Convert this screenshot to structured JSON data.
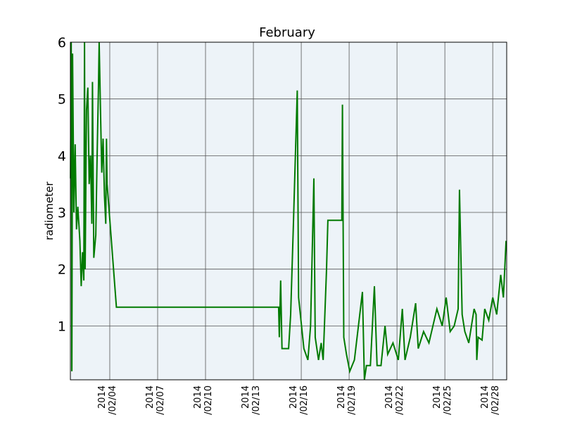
{
  "chart_data": {
    "type": "line",
    "title": "February",
    "y_label": "radiometer",
    "x": [
      "2014-02-01T13:00",
      "2014-02-01T14:00",
      "2014-02-01T15:00",
      "2014-02-01T16:00",
      "2014-02-01T18:00",
      "2014-02-01T20:00",
      "2014-02-01T22:00",
      "2014-02-02T00:00",
      "2014-02-02T03:00",
      "2014-02-02T05:00",
      "2014-02-02T07:00",
      "2014-02-02T09:00",
      "2014-02-02T10:00",
      "2014-02-02T11:00",
      "2014-02-02T13:00",
      "2014-02-02T15:00",
      "2014-02-02T17:00",
      "2014-02-02T19:00",
      "2014-02-02T21:00",
      "2014-02-02T22:00",
      "2014-02-03T00:00",
      "2014-02-03T03:00",
      "2014-02-03T05:00",
      "2014-02-03T07:00",
      "2014-02-03T08:00",
      "2014-02-03T10:00",
      "2014-02-03T12:00",
      "2014-02-03T14:00",
      "2014-02-03T16:00",
      "2014-02-03T18:00",
      "2014-02-03T19:00",
      "2014-02-03T20:00",
      "2014-02-04T10:00",
      "2014-02-14T14:00",
      "2014-02-14T15:00",
      "2014-02-14T17:00",
      "2014-02-14T19:00",
      "2014-02-15T05:00",
      "2014-02-15T08:00",
      "2014-02-15T12:00",
      "2014-02-15T18:00",
      "2014-02-15T20:00",
      "2014-02-16T04:00",
      "2014-02-16T10:00",
      "2014-02-16T14:00",
      "2014-02-16T19:00",
      "2014-02-16T21:00",
      "2014-02-17T02:00",
      "2014-02-17T06:00",
      "2014-02-17T09:00",
      "2014-02-17T14:00",
      "2014-02-17T16:00",
      "2014-02-18T13:00",
      "2014-02-18T14:00",
      "2014-02-18T16:00",
      "2014-02-18T20:00",
      "2014-02-19T01:00",
      "2014-02-19T08:00",
      "2014-02-19T20:00",
      "2014-02-19T23:00",
      "2014-02-20T02:00",
      "2014-02-20T08:00",
      "2014-02-20T14:00",
      "2014-02-20T18:00",
      "2014-02-21T00:00",
      "2014-02-21T06:00",
      "2014-02-21T10:00",
      "2014-02-21T18:00",
      "2014-02-22T02:00",
      "2014-02-22T08:00",
      "2014-02-22T12:00",
      "2014-02-22T20:00",
      "2014-02-23T04:00",
      "2014-02-23T08:00",
      "2014-02-23T16:00",
      "2014-02-24T00:00",
      "2014-02-24T12:00",
      "2014-02-24T20:00",
      "2014-02-25T02:00",
      "2014-02-25T08:00",
      "2014-02-25T14:00",
      "2014-02-25T20:00",
      "2014-02-25T22:00",
      "2014-02-26T02:00",
      "2014-02-26T06:00",
      "2014-02-26T12:00",
      "2014-02-26T20:00",
      "2014-02-26T23:00",
      "2014-02-27T00:00",
      "2014-02-27T02:00",
      "2014-02-27T08:00",
      "2014-02-27T12:00",
      "2014-02-27T18:00",
      "2014-02-28T00:00",
      "2014-02-28T06:00",
      "2014-02-28T12:00",
      "2014-02-28T16:00",
      "2014-02-28T20:00"
    ],
    "series": [
      {
        "color": "#007a00",
        "values": [
          3.6,
          6.0,
          0.2,
          5.8,
          3.0,
          4.2,
          2.7,
          3.1,
          2.5,
          1.7,
          2.3,
          1.8,
          6.0,
          2.0,
          4.8,
          5.2,
          3.5,
          4.0,
          2.8,
          5.3,
          2.2,
          2.6,
          4.0,
          5.2,
          6.0,
          4.8,
          3.7,
          4.3,
          3.3,
          2.8,
          4.3,
          3.5,
          1.33,
          1.33,
          0.8,
          1.8,
          0.6,
          0.6,
          1.2,
          2.7,
          5.15,
          1.5,
          0.6,
          0.4,
          1.0,
          3.6,
          0.8,
          0.4,
          0.7,
          0.4,
          2.0,
          2.86,
          2.86,
          4.9,
          0.8,
          0.5,
          0.2,
          0.4,
          1.6,
          0.05,
          0.3,
          0.3,
          1.7,
          0.3,
          0.3,
          1.0,
          0.5,
          0.7,
          0.4,
          1.3,
          0.4,
          0.8,
          1.4,
          0.6,
          0.9,
          0.7,
          1.3,
          1.0,
          1.5,
          0.9,
          1.0,
          1.3,
          3.4,
          1.2,
          0.9,
          0.7,
          1.3,
          1.2,
          0.4,
          0.8,
          0.75,
          1.3,
          1.1,
          1.5,
          1.2,
          1.9,
          1.5,
          2.5
        ]
      }
    ],
    "xlim": [
      "2014-02-01T12:45",
      "2014-02-28T21:00"
    ],
    "xticks": [
      {
        "value": "2014-02-04",
        "label": "2014\n/02/04"
      },
      {
        "value": "2014-02-07",
        "label": "2014\n/02/07"
      },
      {
        "value": "2014-02-10",
        "label": "2014\n/02/10"
      },
      {
        "value": "2014-02-13",
        "label": "2014\n/02/13"
      },
      {
        "value": "2014-02-16",
        "label": "2014\n/02/16"
      },
      {
        "value": "2014-02-19",
        "label": "2014\n/02/19"
      },
      {
        "value": "2014-02-22",
        "label": "2014\n/02/22"
      },
      {
        "value": "2014-02-25",
        "label": "2014\n/02/25"
      },
      {
        "value": "2014-02-28",
        "label": "2014\n/02/28"
      }
    ],
    "ylim": [
      0.05,
      6
    ],
    "yticks": [
      1,
      2,
      3,
      4,
      5,
      6
    ],
    "grid": true
  }
}
